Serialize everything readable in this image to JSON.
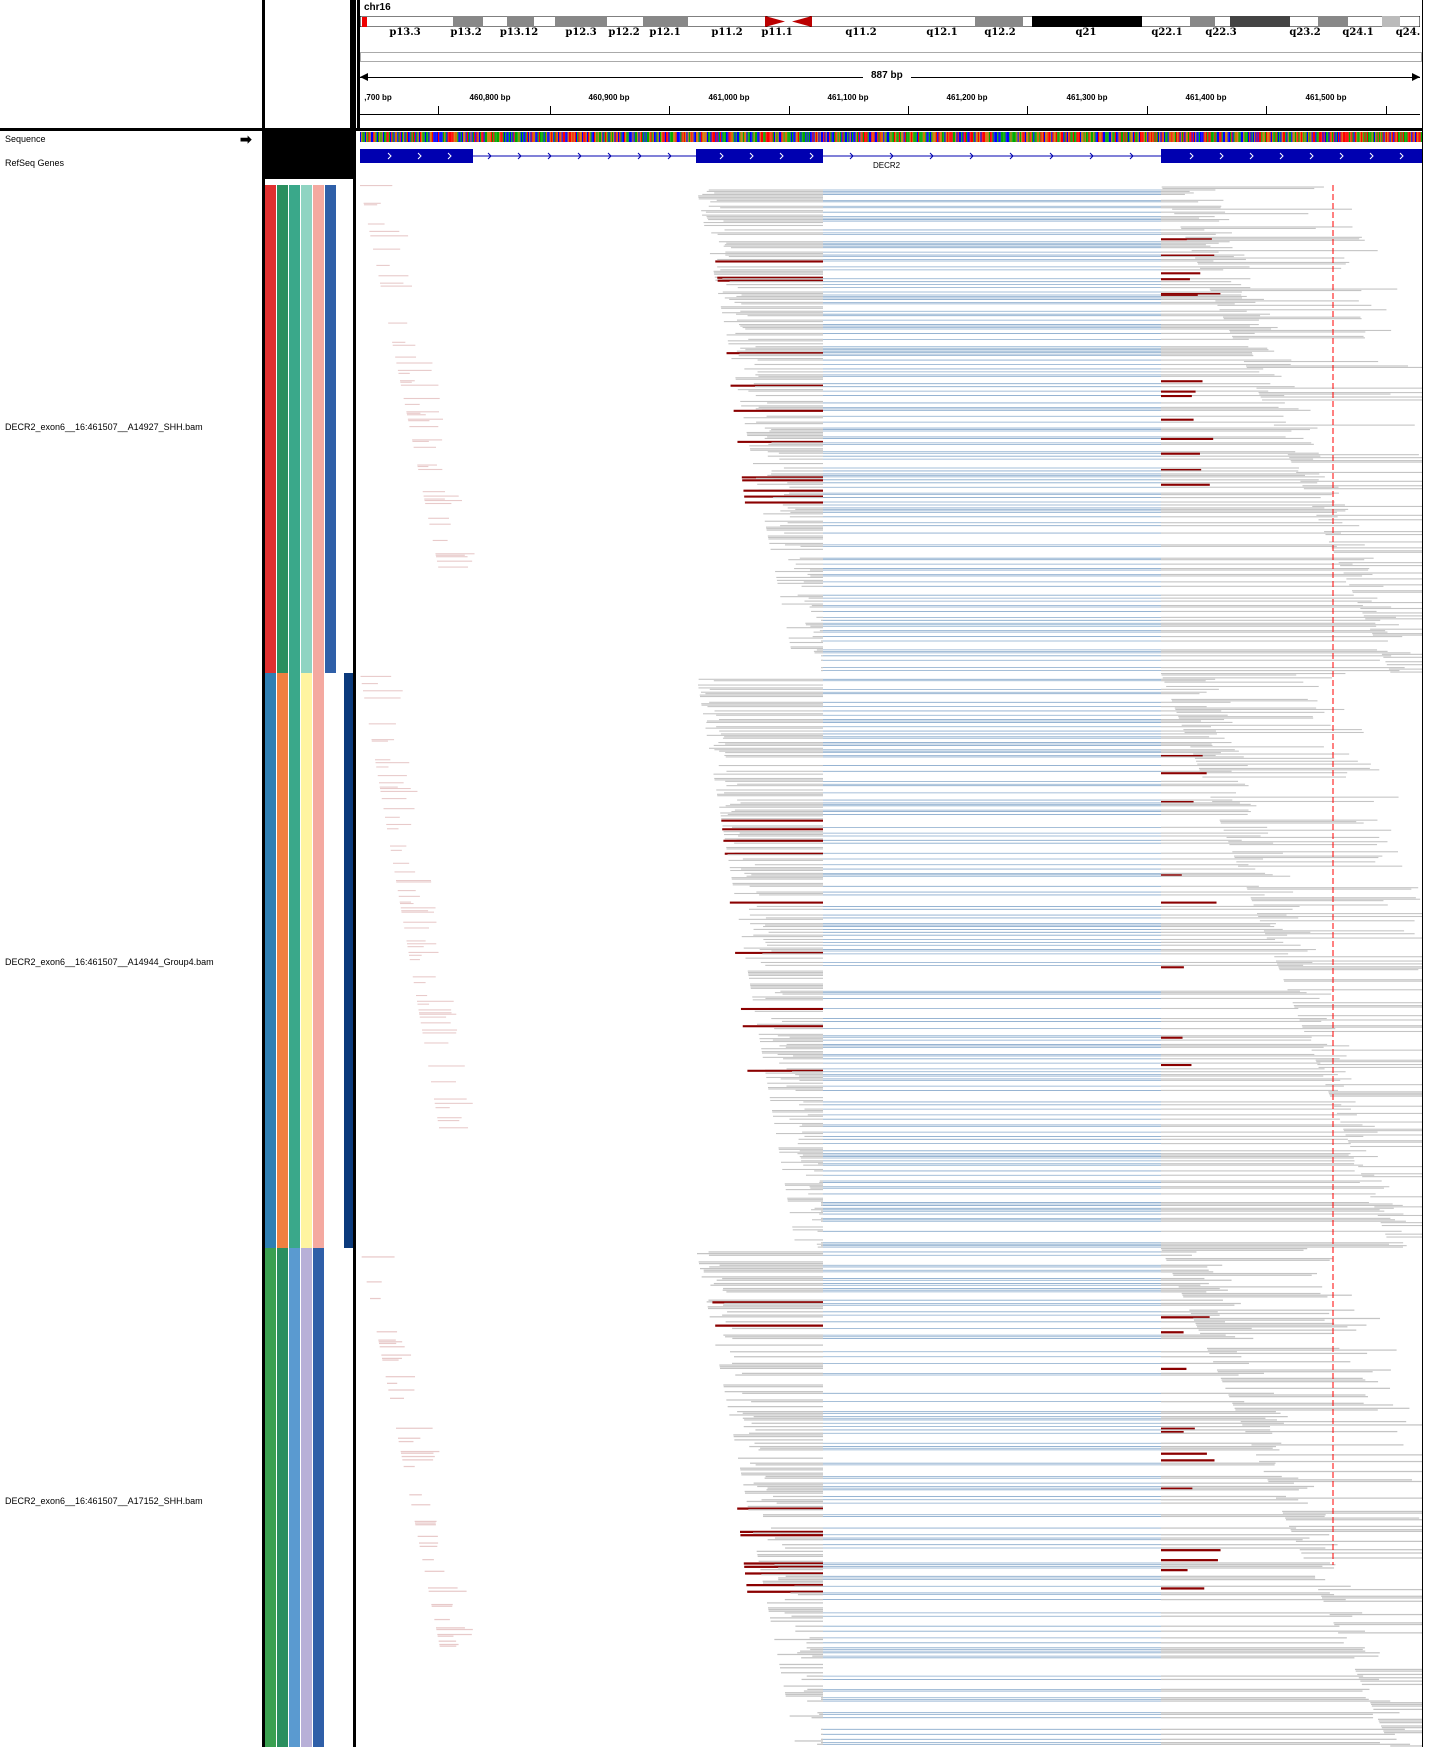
{
  "header": {
    "chromosome": "chr16",
    "span_label": "887 bp",
    "bands": [
      {
        "label": "p13.3"
      },
      {
        "label": "p13.2"
      },
      {
        "label": "p13.12"
      },
      {
        "label": "p12.3"
      },
      {
        "label": "p12.2"
      },
      {
        "label": "p12.1"
      },
      {
        "label": "p11.2"
      },
      {
        "label": "p11.1"
      },
      {
        "label": "q11.2"
      },
      {
        "label": "q12.1"
      },
      {
        "label": "q12.2"
      },
      {
        "label": "q21"
      },
      {
        "label": "q22.1"
      },
      {
        "label": "q22.3"
      },
      {
        "label": "q23.2"
      },
      {
        "label": "q24.1"
      },
      {
        "label": "q24."
      }
    ],
    "ticks": [
      ",700 bp",
      "460,800 bp",
      "460,900 bp",
      "461,000 bp",
      "461,100 bp",
      "461,200 bp",
      "461,300 bp",
      "461,400 bp",
      "461,500 bp"
    ]
  },
  "tracks": {
    "sequence_label": "Sequence",
    "genes_label": "RefSeq Genes",
    "gene_name": "DECR2"
  },
  "samples": [
    {
      "label": "DECR2_exon6__16:461507__A14927_SHH.bam",
      "colors": [
        "#e03030",
        "#2a8f5f",
        "#3aa88a",
        "#8fd4c2",
        "#f4a9a0",
        "#2f5fa8"
      ]
    },
    {
      "label": "DECR2_exon6__16:461507__A14944_Group4.bam",
      "colors": [
        "#2f7fb3",
        "#f08040",
        "#3aa88a",
        "#fff4a0",
        "#f4a9a0",
        "#ffffff"
      ]
    },
    {
      "label": "DECR2_exon6__16:461507__A17152_SHH.bam",
      "colors": [
        "#3aa050",
        "#2a8f5f",
        "#5a9ad0",
        "#b8b0d8",
        "#2f5fa8",
        "#ffffff"
      ]
    }
  ],
  "colors": {
    "read": "#c4c4c4",
    "mismatch": "#8b0000",
    "junction": "#88aacc",
    "exon": "#0000b0"
  }
}
